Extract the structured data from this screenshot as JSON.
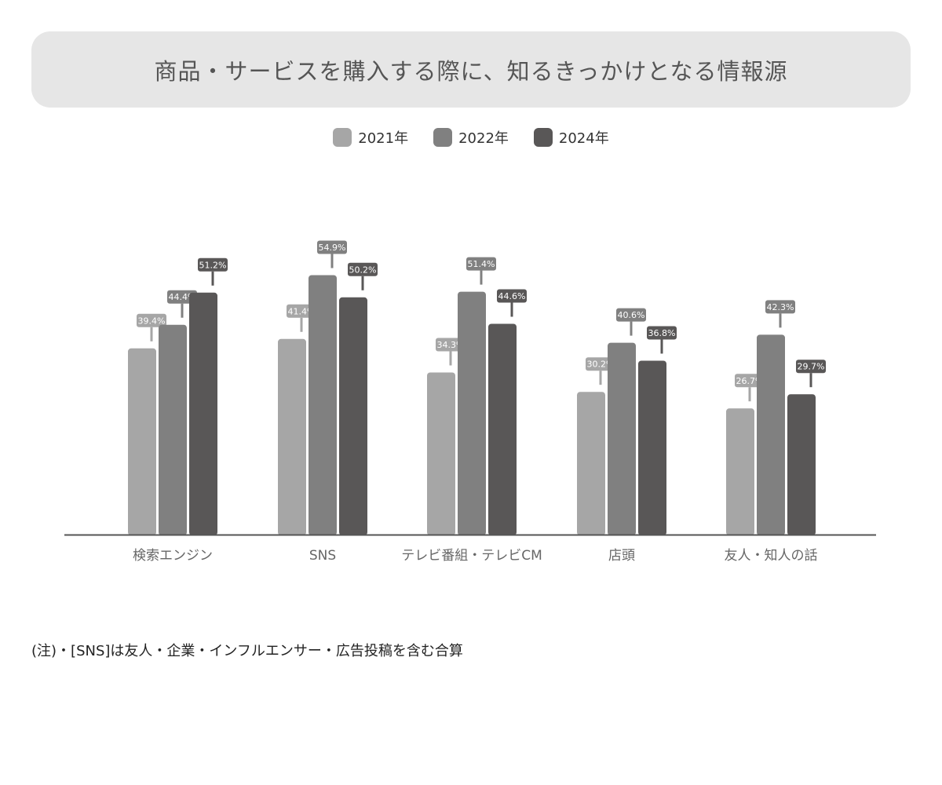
{
  "chart_data": {
    "type": "bar",
    "title": "商品・サービスを購入する際に、知るきっかけとなる情報源",
    "categories": [
      "検索エンジン",
      "SNS",
      "テレビ番組・テレビCM",
      "店頭",
      "友人・知人の話"
    ],
    "series": [
      {
        "name": "2021年",
        "color": "#a6a6a6",
        "values": [
          39.4,
          41.4,
          34.3,
          30.2,
          26.7
        ]
      },
      {
        "name": "2022年",
        "color": "#808080",
        "values": [
          44.4,
          54.9,
          51.4,
          40.6,
          42.3
        ]
      },
      {
        "name": "2024年",
        "color": "#595757",
        "values": [
          51.2,
          50.2,
          44.6,
          36.8,
          29.7
        ]
      }
    ],
    "value_suffix": "%",
    "ylim": [
      0,
      60
    ],
    "xlabel": "",
    "ylabel": "",
    "grid": false,
    "legend_position": "top"
  },
  "note": "(注)・[SNS]は友人・企業・インフルエンサー・広告投稿を含む合算"
}
